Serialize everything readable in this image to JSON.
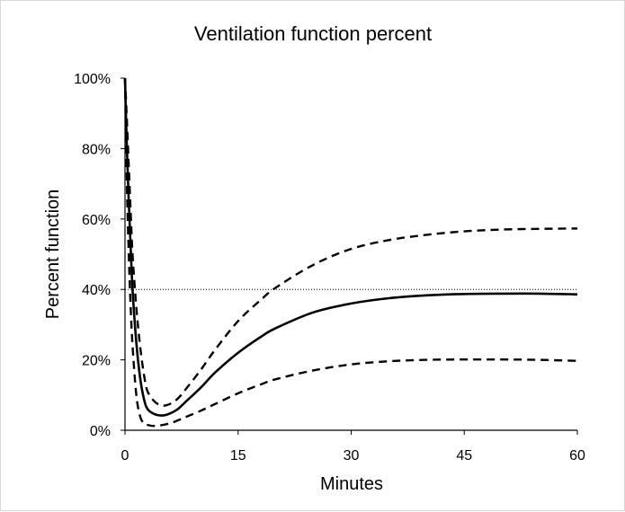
{
  "chart_data": {
    "type": "line",
    "title": "Ventilation function percent",
    "xlabel": "Minutes",
    "ylabel": "Percent  function",
    "xlim": [
      0,
      60
    ],
    "ylim": [
      0,
      100
    ],
    "x_ticks": [
      0,
      15,
      30,
      45,
      60
    ],
    "x_tick_labels": [
      "0",
      "15",
      "30",
      "45",
      "60"
    ],
    "y_ticks": [
      0,
      20,
      40,
      60,
      80,
      100
    ],
    "y_tick_labels": [
      "0%",
      "20%",
      "40%",
      "60%",
      "80%",
      "100%"
    ],
    "grid": false,
    "legend": "none",
    "reference_line": {
      "y": 40,
      "style": "dotted"
    },
    "series": [
      {
        "style": "solid",
        "x": [
          0,
          0.25,
          0.5,
          0.75,
          1,
          1.5,
          2,
          2.5,
          3,
          4,
          5,
          6,
          7,
          8,
          10,
          12,
          15,
          18,
          20,
          25,
          30,
          35,
          40,
          45,
          50,
          55,
          60
        ],
        "y": [
          100,
          80,
          65,
          52,
          40,
          25,
          15,
          9,
          6,
          4.5,
          4.2,
          4.8,
          6,
          8,
          12,
          16.5,
          22,
          26.5,
          29,
          33.5,
          36,
          37.5,
          38.3,
          38.7,
          38.8,
          38.8,
          38.6
        ]
      },
      {
        "style": "dashed",
        "x": [
          0,
          0.25,
          0.5,
          0.75,
          1,
          1.5,
          2,
          2.5,
          3,
          4,
          5,
          6,
          7,
          8,
          10,
          12,
          15,
          18,
          20,
          25,
          30,
          35,
          40,
          45,
          50,
          55,
          60
        ],
        "y": [
          100,
          88,
          75,
          62,
          50,
          35,
          24,
          16,
          11,
          8,
          7,
          7.5,
          9,
          11.5,
          17,
          23,
          31,
          37,
          40.5,
          47,
          51.5,
          54,
          55.5,
          56.5,
          57,
          57.2,
          57.3
        ]
      },
      {
        "style": "dashed",
        "x": [
          0,
          0.25,
          0.5,
          0.75,
          1,
          1.5,
          2,
          2.5,
          3,
          4,
          5,
          6,
          7,
          8,
          10,
          12,
          15,
          18,
          20,
          25,
          30,
          35,
          40,
          45,
          50,
          55,
          60
        ],
        "y": [
          100,
          70,
          50,
          35,
          24,
          10,
          4,
          2,
          1.5,
          1.2,
          1.5,
          2,
          2.8,
          3.7,
          5.5,
          7.5,
          10.5,
          13,
          14.5,
          17,
          18.7,
          19.6,
          20,
          20.1,
          20.1,
          20,
          19.7
        ]
      }
    ]
  }
}
